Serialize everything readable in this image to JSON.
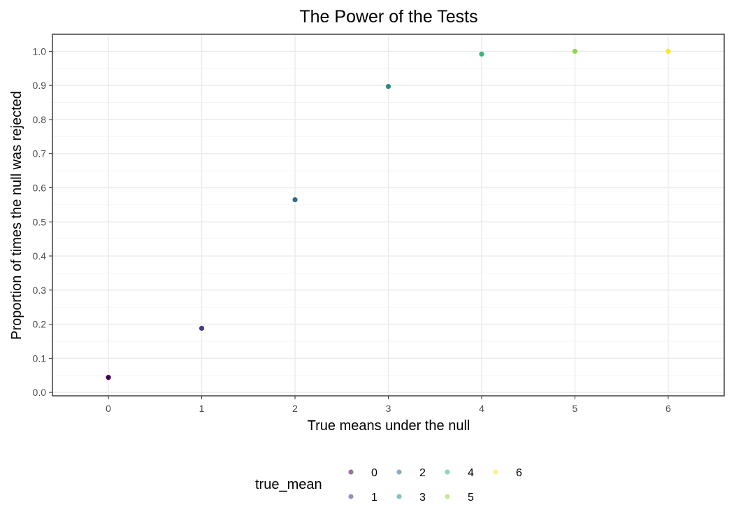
{
  "chart_data": {
    "type": "scatter",
    "title": "The Power of the Tests",
    "xlabel": "True means under the null",
    "ylabel": "Proportion of times the null was rejected",
    "xlim": [
      -0.6,
      6.6
    ],
    "ylim": [
      -0.01,
      1.05
    ],
    "x_ticks": [
      "0",
      "1",
      "2",
      "3",
      "4",
      "5",
      "6"
    ],
    "y_ticks": [
      "0.0",
      "0.1",
      "0.2",
      "0.3",
      "0.4",
      "0.5",
      "0.6",
      "0.7",
      "0.8",
      "0.9",
      "1.0"
    ],
    "grid": true,
    "legend": {
      "title": "true_mean",
      "placement": "bottom",
      "entries": [
        {
          "label": "0",
          "color": "#440154"
        },
        {
          "label": "1",
          "color": "#443A83"
        },
        {
          "label": "2",
          "color": "#31688E"
        },
        {
          "label": "3",
          "color": "#21908C"
        },
        {
          "label": "4",
          "color": "#35B779"
        },
        {
          "label": "5",
          "color": "#8FD744"
        },
        {
          "label": "6",
          "color": "#FDE725"
        }
      ]
    },
    "points": [
      {
        "x": 0,
        "y": 0.044,
        "group": "0",
        "color": "#440154"
      },
      {
        "x": 1,
        "y": 0.188,
        "group": "1",
        "color": "#443A83"
      },
      {
        "x": 2,
        "y": 0.565,
        "group": "2",
        "color": "#31688E"
      },
      {
        "x": 3,
        "y": 0.897,
        "group": "3",
        "color": "#21908C"
      },
      {
        "x": 4,
        "y": 0.992,
        "group": "4",
        "color": "#35B779"
      },
      {
        "x": 5,
        "y": 1.0,
        "group": "5",
        "color": "#8FD744"
      },
      {
        "x": 6,
        "y": 1.0,
        "group": "6",
        "color": "#FDE725"
      }
    ]
  }
}
